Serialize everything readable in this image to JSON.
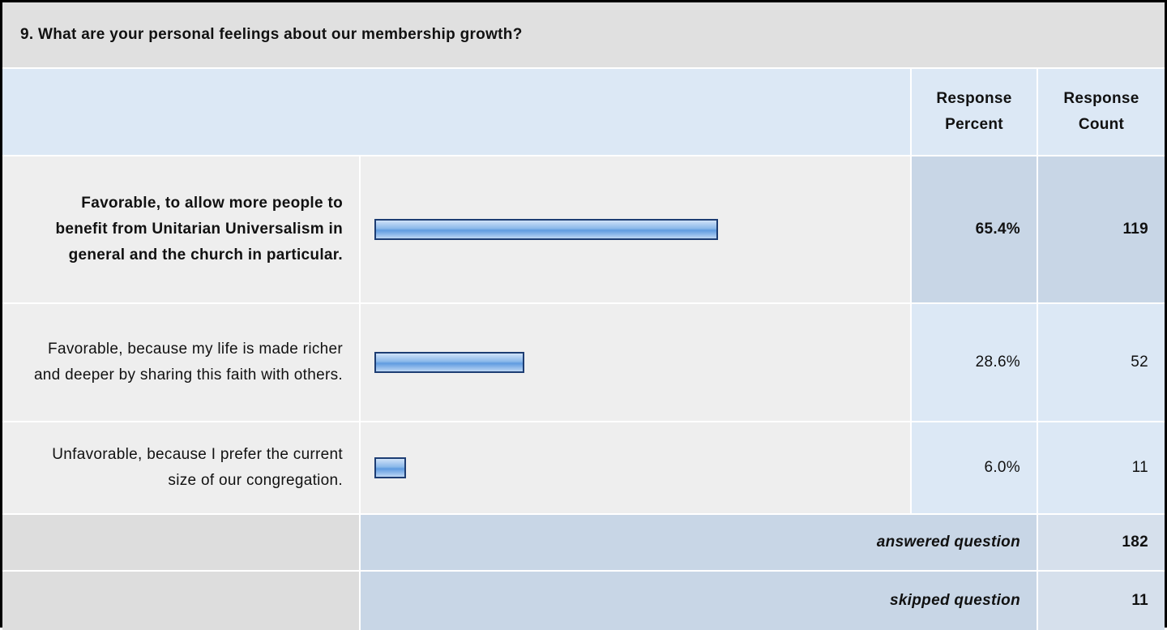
{
  "question": "9. What are your personal feelings about our membership growth?",
  "header": {
    "percent": "Response Percent",
    "count": "Response Count"
  },
  "rows": [
    {
      "label": "Favorable, to allow more people to benefit from Unitarian Universalism in general and the church in particular.",
      "percent": 65.4,
      "percent_label": "65.4%",
      "count": 119
    },
    {
      "label": "Favorable, because my life is made richer and deeper by sharing this faith with others.",
      "percent": 28.6,
      "percent_label": "28.6%",
      "count": 52
    },
    {
      "label": "Unfavorable, because I prefer the current size of our congregation.",
      "percent": 6.0,
      "percent_label": "6.0%",
      "count": 11
    }
  ],
  "summary": [
    {
      "label": "answered question",
      "count": 182
    },
    {
      "label": "skipped question",
      "count": 11
    }
  ]
}
